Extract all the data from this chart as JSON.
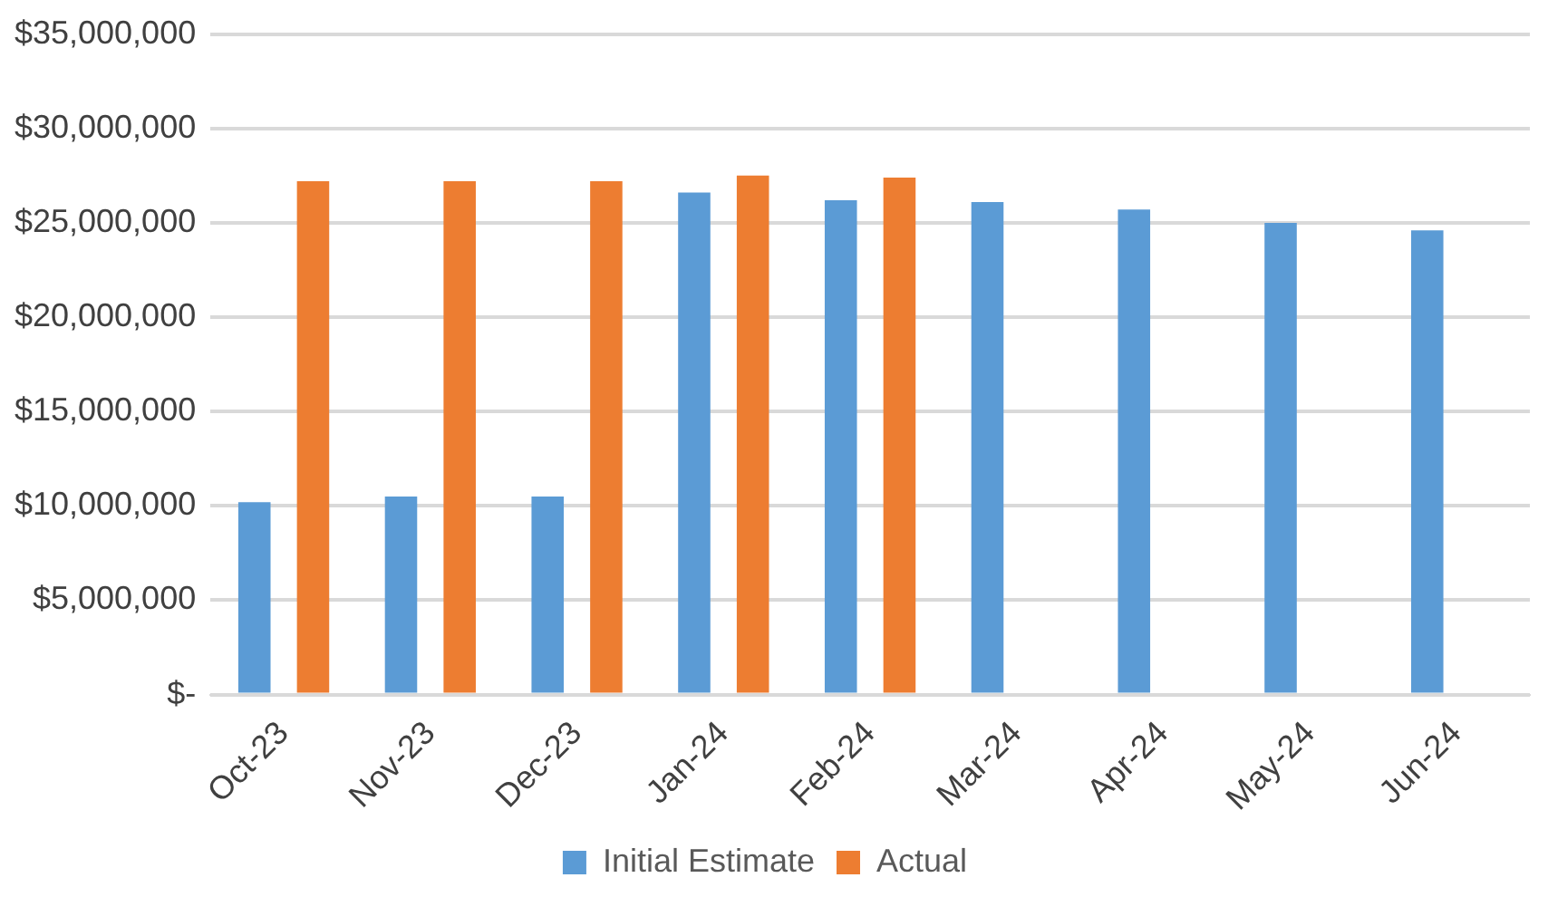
{
  "chart_data": {
    "type": "bar",
    "categories": [
      "Oct-23",
      "Nov-23",
      "Dec-23",
      "Jan-24",
      "Feb-24",
      "Mar-24",
      "Apr-24",
      "May-24",
      "Jun-24"
    ],
    "series": [
      {
        "name": "Initial Estimate",
        "color": "#5b9bd5",
        "values": [
          10200000,
          10500000,
          10500000,
          26600000,
          26200000,
          26100000,
          25700000,
          25000000,
          24600000
        ]
      },
      {
        "name": "Actual",
        "color": "#ed7d31",
        "values": [
          27200000,
          27200000,
          27200000,
          27500000,
          27400000,
          null,
          null,
          null,
          null
        ]
      }
    ],
    "ylim": [
      0,
      35000000
    ],
    "yticks": [
      {
        "value": 0,
        "label": "$-"
      },
      {
        "value": 5000000,
        "label": "$5,000,000"
      },
      {
        "value": 10000000,
        "label": "$10,000,000"
      },
      {
        "value": 15000000,
        "label": "$15,000,000"
      },
      {
        "value": 20000000,
        "label": "$20,000,000"
      },
      {
        "value": 25000000,
        "label": "$25,000,000"
      },
      {
        "value": 30000000,
        "label": "$30,000,000"
      },
      {
        "value": 35000000,
        "label": "$35,000,000"
      }
    ],
    "grid": "y",
    "legend": "bottom"
  }
}
